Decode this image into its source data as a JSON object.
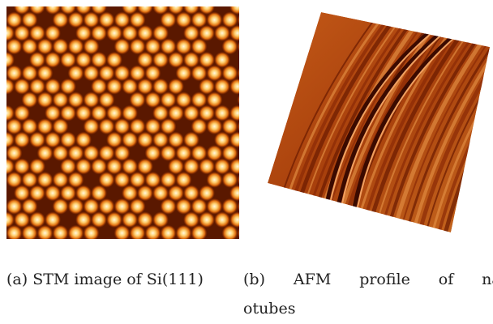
{
  "figures": [
    {
      "caption_lines": [
        "(a) STM image of Si(111)"
      ]
    },
    {
      "caption_lines": [
        "(b) AFM profile of nan",
        "otubes"
      ]
    }
  ]
}
